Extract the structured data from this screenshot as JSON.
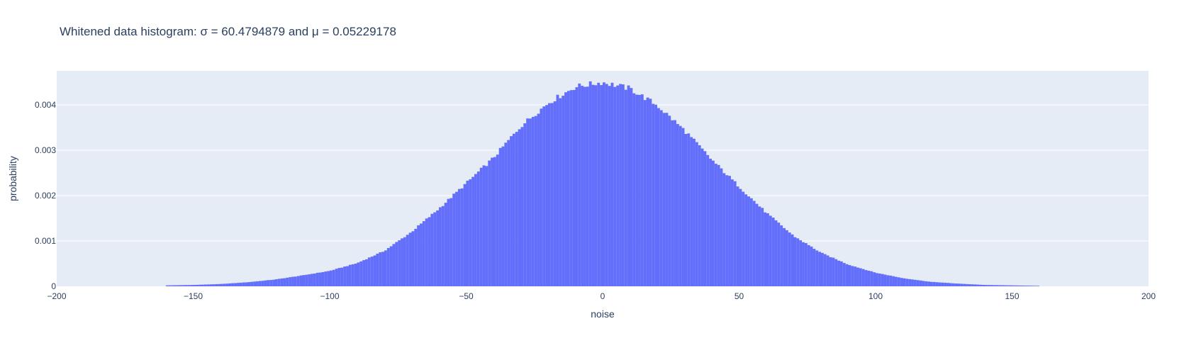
{
  "chart_data": {
    "type": "bar",
    "title": "Whitened data histogram: σ = 60.4794879 and μ = 0.05229178",
    "xlabel": "noise",
    "ylabel": "probability",
    "xlim": [
      -200,
      200
    ],
    "ylim": [
      0,
      0.00475
    ],
    "x_ticks": [
      -200,
      -150,
      -100,
      -50,
      0,
      50,
      100,
      150,
      200
    ],
    "x_tick_labels": [
      "−200",
      "−150",
      "−100",
      "−50",
      "0",
      "50",
      "100",
      "150",
      "200"
    ],
    "y_ticks": [
      0,
      0.001,
      0.002,
      0.003,
      0.004
    ],
    "y_tick_labels": [
      "0",
      "0.001",
      "0.002",
      "0.003",
      "0.004"
    ],
    "grid": true,
    "legend": "none",
    "bin_width": 1,
    "bin_start": -160,
    "series": [
      {
        "color": "#636efa",
        "x": [
          -160,
          -150,
          -140,
          -130,
          -120,
          -110,
          -100,
          -90,
          -80,
          -70,
          -60,
          -50,
          -40,
          -30,
          -20,
          -10,
          0,
          10,
          20,
          30,
          40,
          50,
          60,
          70,
          80,
          90,
          100,
          110,
          120,
          130,
          140,
          150,
          160
        ],
        "values": [
          2e-05,
          3e-05,
          5e-05,
          9e-05,
          0.00015,
          0.00024,
          0.00034,
          0.00051,
          0.00078,
          0.0012,
          0.00171,
          0.00227,
          0.00283,
          0.00353,
          0.00404,
          0.0044,
          0.0045,
          0.00436,
          0.00399,
          0.00344,
          0.00279,
          0.0022,
          0.00162,
          0.00111,
          0.00074,
          0.00048,
          0.0003,
          0.00018,
          0.0001,
          6e-05,
          3e-05,
          2e-05,
          1e-05
        ]
      }
    ],
    "colors": {
      "plot_background": "#e5ecf6",
      "grid": "#ffffff",
      "bar": "#636efa",
      "text": "#2a3f5f"
    }
  }
}
